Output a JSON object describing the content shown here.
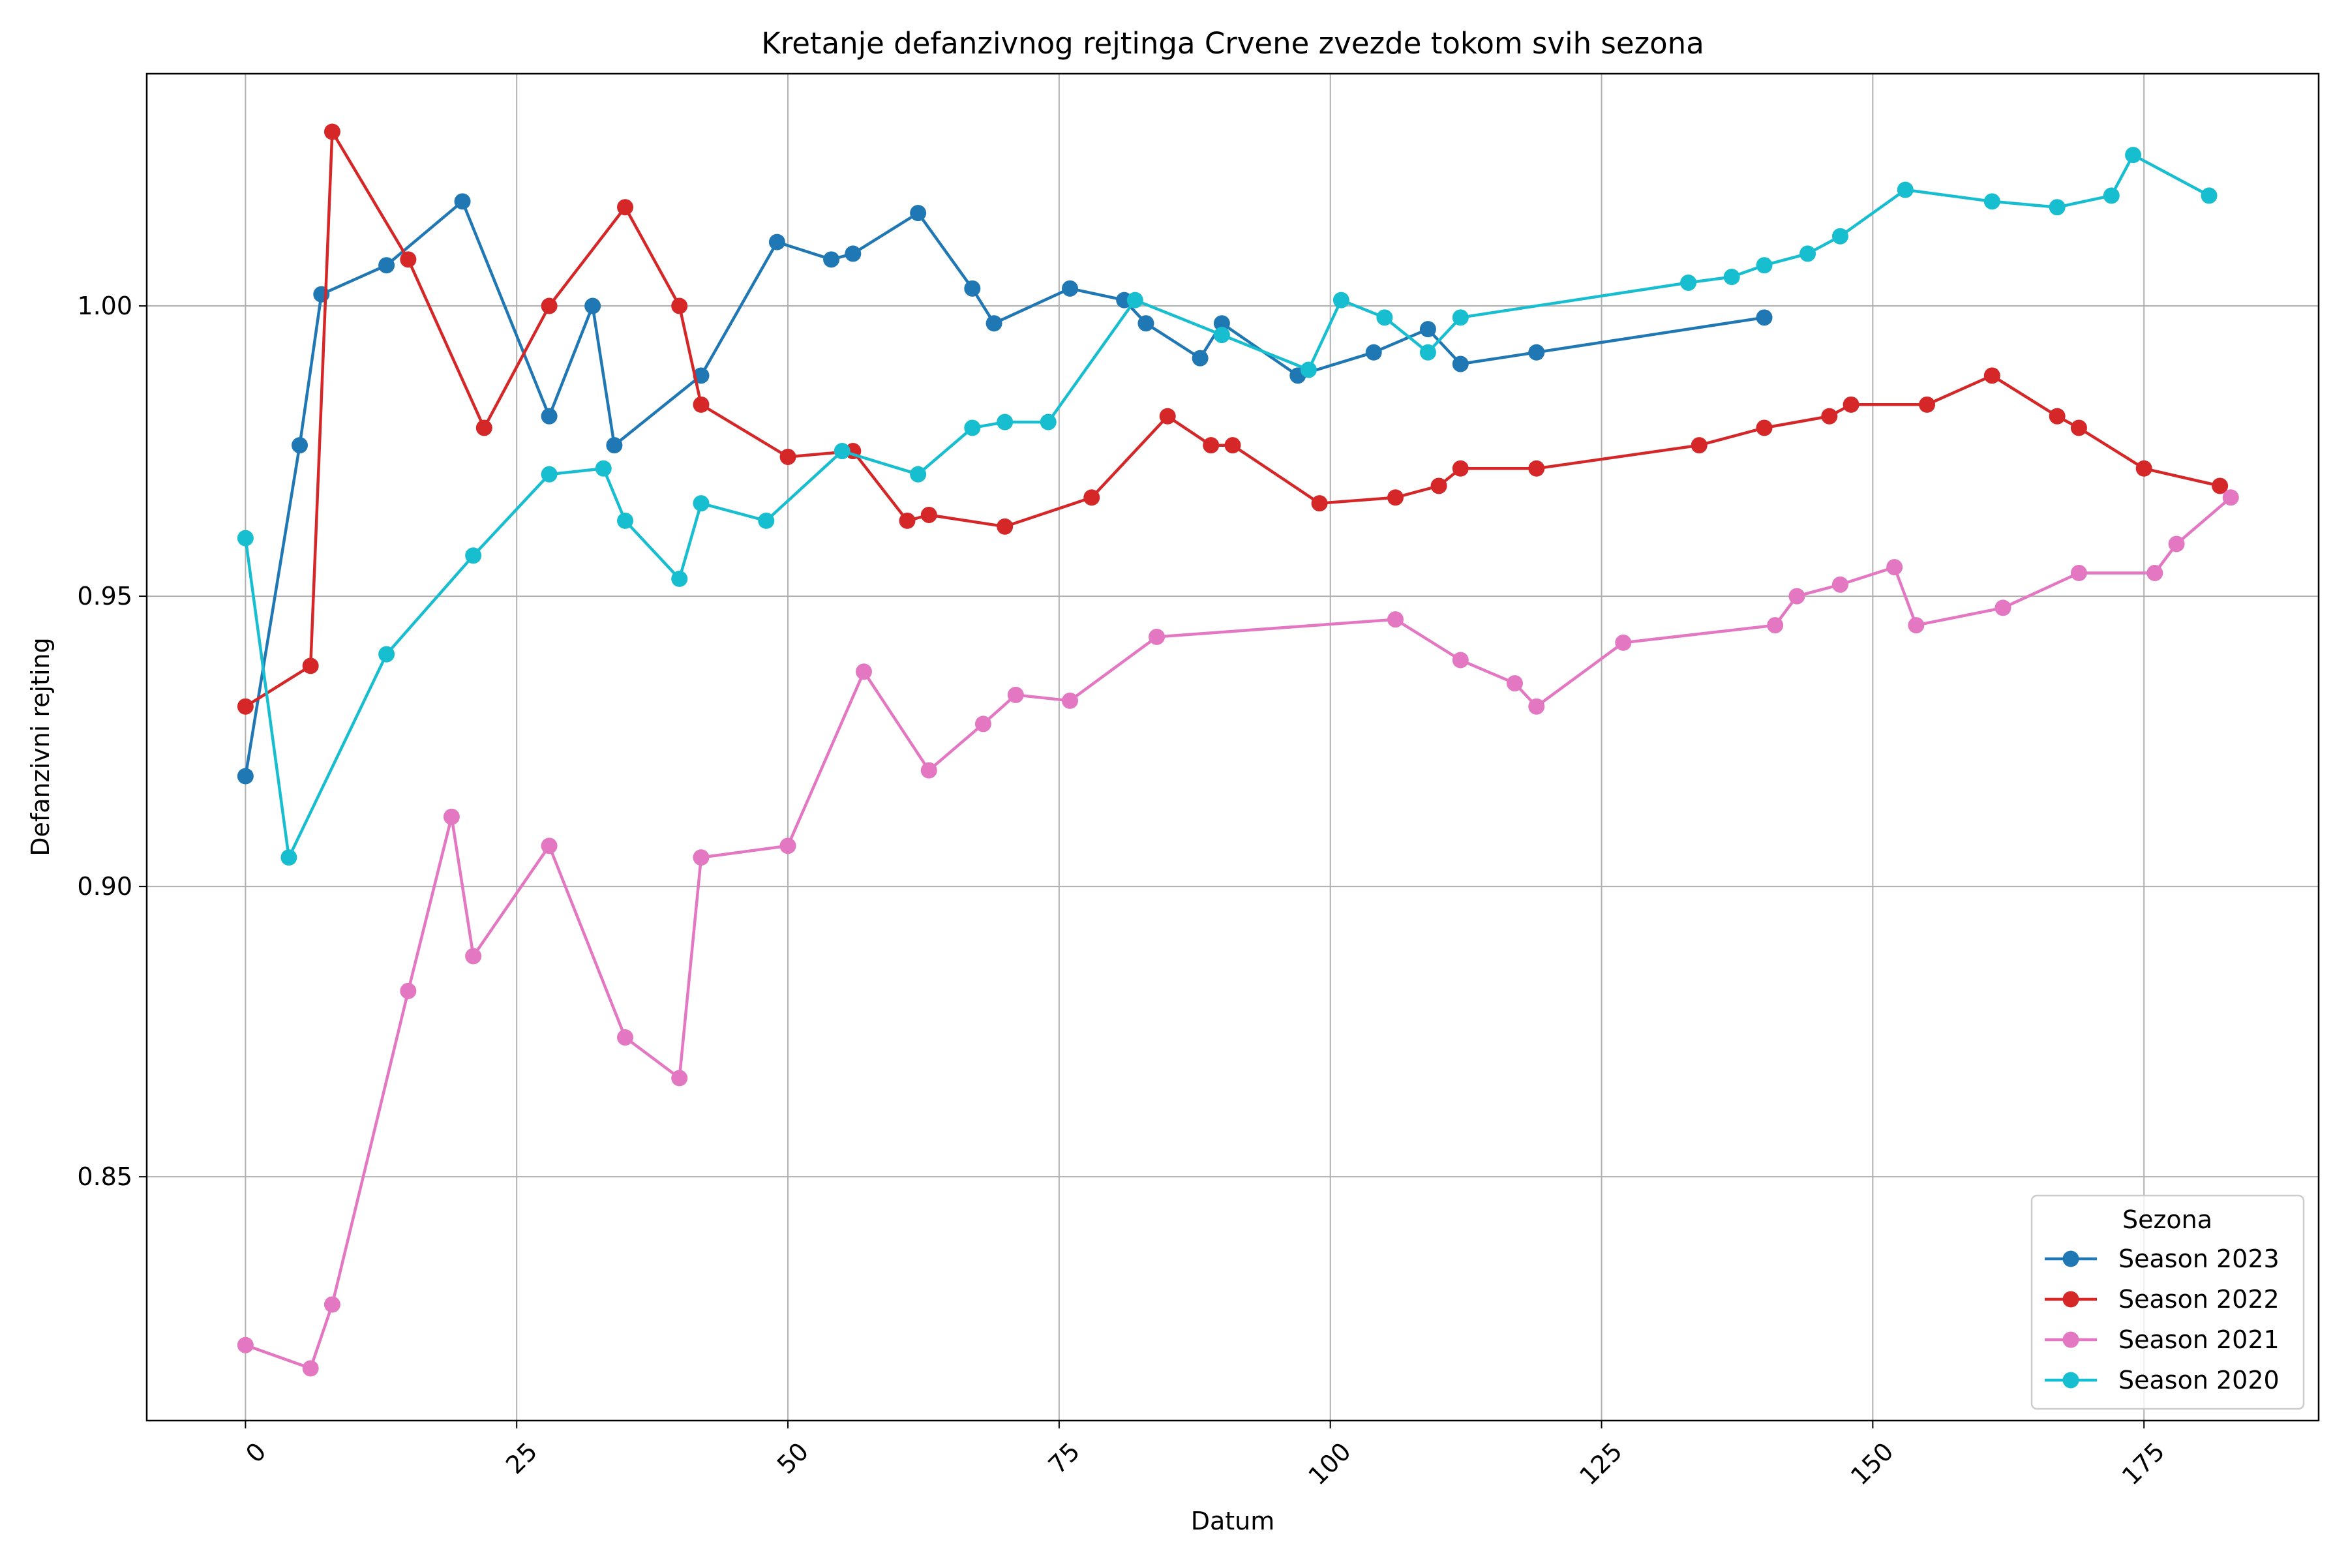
{
  "chart_data": {
    "type": "line",
    "title": "Kretanje defanzivnog rejtinga Crvene zvezde tokom svih sezona",
    "xlabel": "Datum",
    "ylabel": "Defanzivni rejting",
    "xlim": [
      -9.1,
      191.1
    ],
    "ylim": [
      0.808,
      1.04
    ],
    "x_ticks": [
      0,
      25,
      50,
      75,
      100,
      125,
      150,
      175
    ],
    "y_ticks": [
      0.85,
      0.9,
      0.95,
      1.0
    ],
    "y_tick_labels": [
      "0.85",
      "0.90",
      "0.95",
      "1.00"
    ],
    "grid": true,
    "legend": {
      "title": "Sezona",
      "placement": "lower-right"
    },
    "series": [
      {
        "name": "Season 2023",
        "color": "#1f77b4",
        "x": [
          0,
          5,
          7,
          13,
          20,
          28,
          32,
          34,
          42,
          49,
          54,
          56,
          62,
          67,
          69,
          76,
          81,
          83,
          88,
          90,
          97,
          104,
          109,
          112,
          119,
          140
        ],
        "y": [
          0.919,
          0.976,
          1.002,
          1.007,
          1.018,
          0.981,
          1.0,
          0.976,
          0.988,
          1.011,
          1.008,
          1.009,
          1.016,
          1.003,
          0.997,
          1.003,
          1.001,
          0.997,
          0.991,
          0.997,
          0.988,
          0.992,
          0.996,
          0.99,
          0.992,
          0.998
        ]
      },
      {
        "name": "Season 2022",
        "color": "#d62728",
        "x": [
          0,
          6,
          8,
          15,
          22,
          28,
          35,
          40,
          42,
          50,
          56,
          61,
          63,
          70,
          78,
          85,
          89,
          91,
          99,
          106,
          110,
          112,
          119,
          134,
          140,
          146,
          148,
          155,
          161,
          167,
          169,
          175,
          182
        ],
        "y": [
          0.931,
          0.938,
          1.03,
          1.008,
          0.979,
          1.0,
          1.017,
          1.0,
          0.983,
          0.974,
          0.975,
          0.963,
          0.964,
          0.962,
          0.967,
          0.981,
          0.976,
          0.976,
          0.966,
          0.967,
          0.969,
          0.972,
          0.972,
          0.976,
          0.979,
          0.981,
          0.983,
          0.983,
          0.988,
          0.981,
          0.979,
          0.972,
          0.969
        ]
      },
      {
        "name": "Season 2021",
        "color": "#e377c2",
        "x": [
          0,
          6,
          8,
          15,
          19,
          21,
          28,
          35,
          40,
          42,
          50,
          57,
          63,
          68,
          71,
          76,
          84,
          106,
          112,
          117,
          119,
          127,
          141,
          143,
          147,
          152,
          154,
          162,
          169,
          176,
          178,
          183
        ],
        "y": [
          0.821,
          0.817,
          0.828,
          0.882,
          0.912,
          0.888,
          0.907,
          0.874,
          0.867,
          0.905,
          0.907,
          0.937,
          0.92,
          0.928,
          0.933,
          0.932,
          0.943,
          0.946,
          0.939,
          0.935,
          0.931,
          0.942,
          0.945,
          0.95,
          0.952,
          0.955,
          0.945,
          0.948,
          0.954,
          0.954,
          0.959,
          0.967
        ]
      },
      {
        "name": "Season 2020",
        "color": "#17becf",
        "x": [
          0,
          4,
          13,
          21,
          28,
          33,
          35,
          40,
          42,
          48,
          55,
          62,
          67,
          70,
          74,
          82,
          90,
          98,
          101,
          105,
          109,
          112,
          133,
          137,
          140,
          144,
          147,
          153,
          161,
          167,
          172,
          174,
          181
        ],
        "y": [
          0.96,
          0.905,
          0.94,
          0.957,
          0.971,
          0.972,
          0.963,
          0.953,
          0.966,
          0.963,
          0.975,
          0.971,
          0.979,
          0.98,
          0.98,
          1.001,
          0.995,
          0.989,
          1.001,
          0.998,
          0.992,
          0.998,
          1.004,
          1.005,
          1.007,
          1.009,
          1.012,
          1.02,
          1.018,
          1.017,
          1.019,
          1.026,
          1.019
        ]
      }
    ]
  }
}
